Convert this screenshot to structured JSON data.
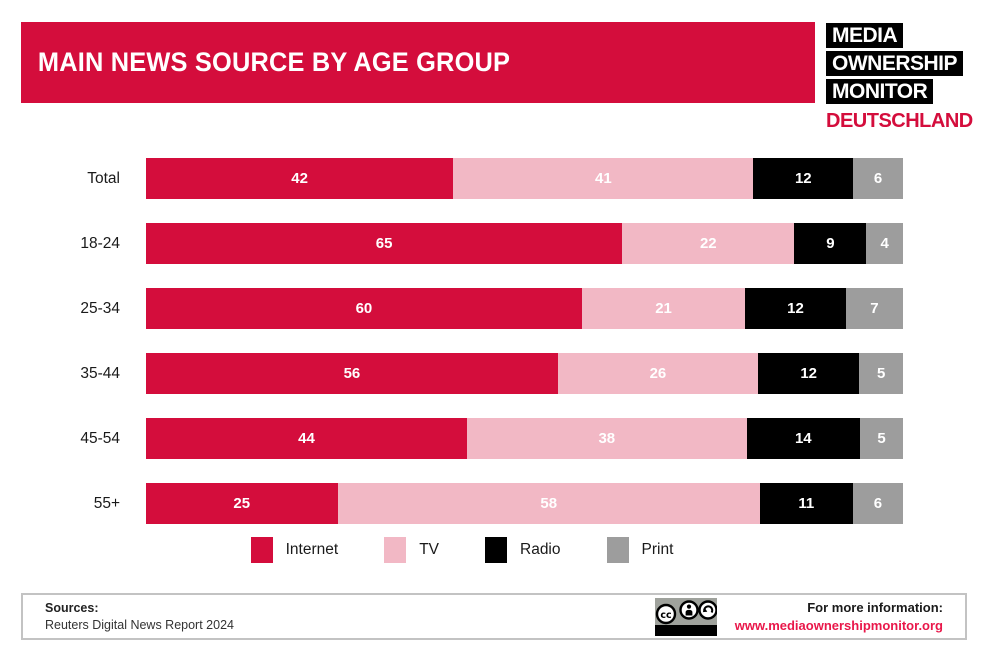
{
  "header": {
    "title": "MAIN NEWS SOURCE BY AGE GROUP"
  },
  "logo": {
    "lines": [
      "MEDIA",
      "OWNERSHIP",
      "MONITOR"
    ],
    "country": "DEUTSCHLAND"
  },
  "colors": {
    "brand_red": "#d40d3c",
    "pink": "#f2b8c5",
    "black": "#000000",
    "gray": "#9d9d9d",
    "link_red": "#e9174a",
    "header_bg": "#d40d3c"
  },
  "chart_data": {
    "type": "bar",
    "stacked": true,
    "orientation": "horizontal",
    "title": "MAIN NEWS SOURCE BY AGE GROUP",
    "xlim": [
      0,
      100
    ],
    "value_labels": "inside, white, bold",
    "legend_position": "bottom-center",
    "grid": false,
    "categories": [
      "Total",
      "18-24",
      "25-34",
      "35-44",
      "45-54",
      "55+"
    ],
    "series": [
      {
        "name": "Internet",
        "color": "#d40d3c",
        "values": [
          42,
          65,
          60,
          56,
          44,
          25
        ]
      },
      {
        "name": "TV",
        "color": "#f2b8c5",
        "values": [
          41,
          22,
          21,
          26,
          38,
          58
        ]
      },
      {
        "name": "Radio",
        "color": "#000000",
        "values": [
          12,
          9,
          12,
          12,
          14,
          11
        ]
      },
      {
        "name": "Print",
        "color": "#9d9d9d",
        "values": [
          6,
          4,
          7,
          5,
          5,
          6
        ]
      }
    ]
  },
  "footer": {
    "sources_label": "Sources:",
    "sources_text": "Reuters Digital News Report 2024",
    "license": "CC BY-SA badge",
    "license_icons": [
      "cc-icon",
      "attribution-person-icon",
      "share-alike-arrow-icon"
    ],
    "info_label": "For more information:",
    "info_url": "www.mediaownershipmonitor.org"
  }
}
